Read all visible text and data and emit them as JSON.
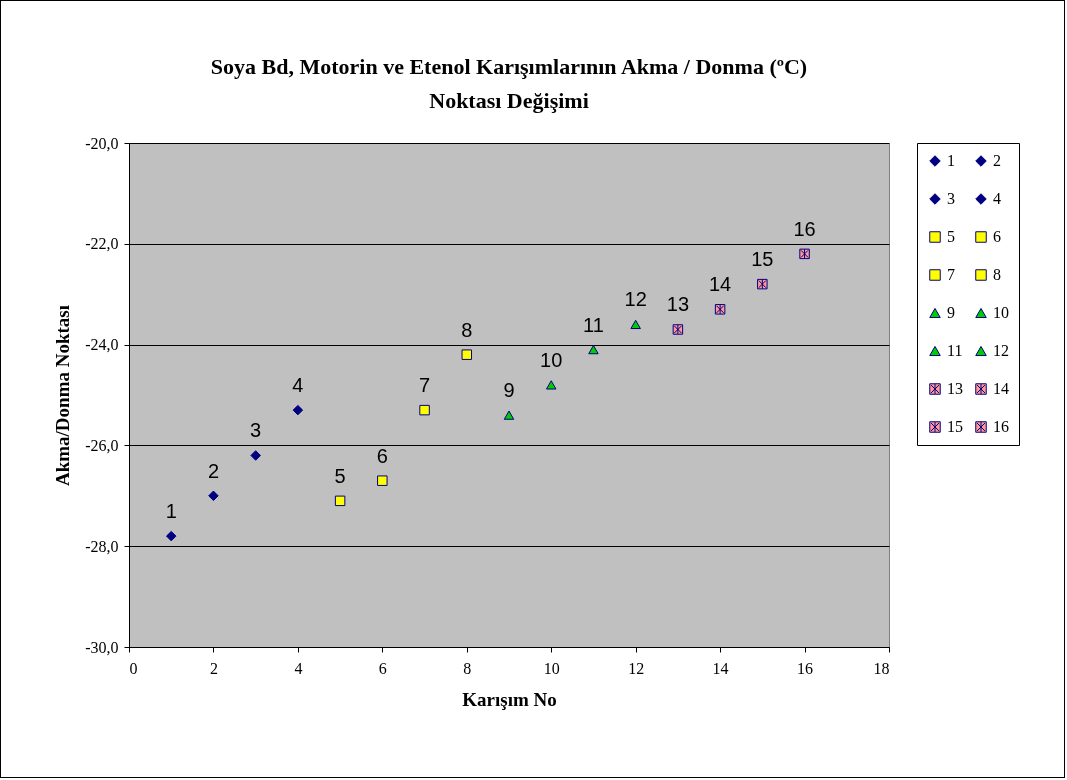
{
  "chart_data": {
    "type": "scatter",
    "title": "Soya Bd, Motorin ve Etenol Karışımlarının Akma / Donma (ºC) Noktası Değişimi",
    "xlabel": "Karışım No",
    "ylabel": "Akma/Donma Noktası",
    "xlim": [
      0,
      18
    ],
    "xticks": [
      0,
      2,
      4,
      6,
      8,
      10,
      12,
      14,
      16,
      18
    ],
    "ylim": [
      -30,
      -20
    ],
    "yticks": [
      {
        "value": -30,
        "label": "-30,0"
      },
      {
        "value": -28,
        "label": "-28,0"
      },
      {
        "value": -26,
        "label": "-26,0"
      },
      {
        "value": -24,
        "label": "-24,0"
      },
      {
        "value": -22,
        "label": "-22,0"
      },
      {
        "value": -20,
        "label": "-20,0"
      }
    ],
    "grid": "y",
    "legend": "right",
    "series": [
      {
        "name": "1",
        "color": "#000080",
        "marker": "diamond",
        "x": [
          1
        ],
        "values": [
          -27.8
        ]
      },
      {
        "name": "2",
        "color": "#000080",
        "marker": "diamond",
        "x": [
          2
        ],
        "values": [
          -27.0
        ]
      },
      {
        "name": "3",
        "color": "#000080",
        "marker": "diamond",
        "x": [
          3
        ],
        "values": [
          -26.2
        ]
      },
      {
        "name": "4",
        "color": "#000080",
        "marker": "diamond",
        "x": [
          4
        ],
        "values": [
          -25.3
        ]
      },
      {
        "name": "5",
        "color": "#ffff00",
        "marker": "square",
        "x": [
          5
        ],
        "values": [
          -27.1
        ]
      },
      {
        "name": "6",
        "color": "#ffff00",
        "marker": "square",
        "x": [
          6
        ],
        "values": [
          -26.7
        ]
      },
      {
        "name": "7",
        "color": "#ffff00",
        "marker": "square",
        "x": [
          7
        ],
        "values": [
          -25.3
        ]
      },
      {
        "name": "8",
        "color": "#ffff00",
        "marker": "square",
        "x": [
          8
        ],
        "values": [
          -24.2
        ]
      },
      {
        "name": "9",
        "color": "#00cc00",
        "marker": "triangle",
        "x": [
          9
        ],
        "values": [
          -25.4
        ]
      },
      {
        "name": "10",
        "color": "#00cc00",
        "marker": "triangle",
        "x": [
          10
        ],
        "values": [
          -24.8
        ]
      },
      {
        "name": "11",
        "color": "#00cc00",
        "marker": "triangle",
        "x": [
          11
        ],
        "values": [
          -24.1
        ]
      },
      {
        "name": "12",
        "color": "#00cc00",
        "marker": "triangle",
        "x": [
          12
        ],
        "values": [
          -23.6
        ]
      },
      {
        "name": "13",
        "color": "#ff9999",
        "marker": "cross",
        "x": [
          13
        ],
        "values": [
          -23.7
        ]
      },
      {
        "name": "14",
        "color": "#ff9999",
        "marker": "cross",
        "x": [
          14
        ],
        "values": [
          -23.3
        ]
      },
      {
        "name": "15",
        "color": "#ff9999",
        "marker": "cross",
        "x": [
          15
        ],
        "values": [
          -22.8
        ]
      },
      {
        "name": "16",
        "color": "#ff9999",
        "marker": "cross",
        "x": [
          16
        ],
        "values": [
          -22.2
        ]
      }
    ]
  }
}
